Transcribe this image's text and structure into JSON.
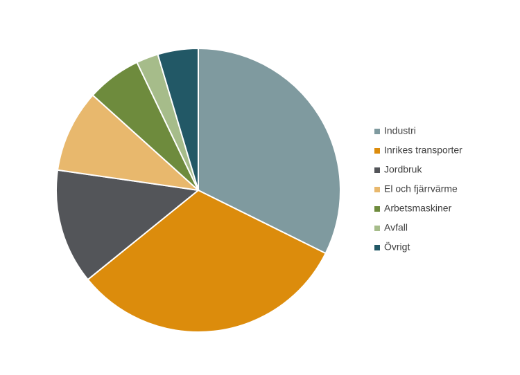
{
  "chart_data": {
    "type": "pie",
    "categories": [
      "Industri",
      "Inrikes transporter",
      "Jordbruk",
      "El och fjärrvärme",
      "Arbetsmaskiner",
      "Avfall",
      "Övrigt"
    ],
    "values": [
      32.3,
      31.8,
      13.1,
      9.4,
      6.2,
      2.5,
      4.6
    ],
    "colors": [
      "#7f9a9f",
      "#dc8c0c",
      "#535559",
      "#e8b86d",
      "#6e8b3d",
      "#a6bc8a",
      "#225866"
    ],
    "legend": "right"
  }
}
